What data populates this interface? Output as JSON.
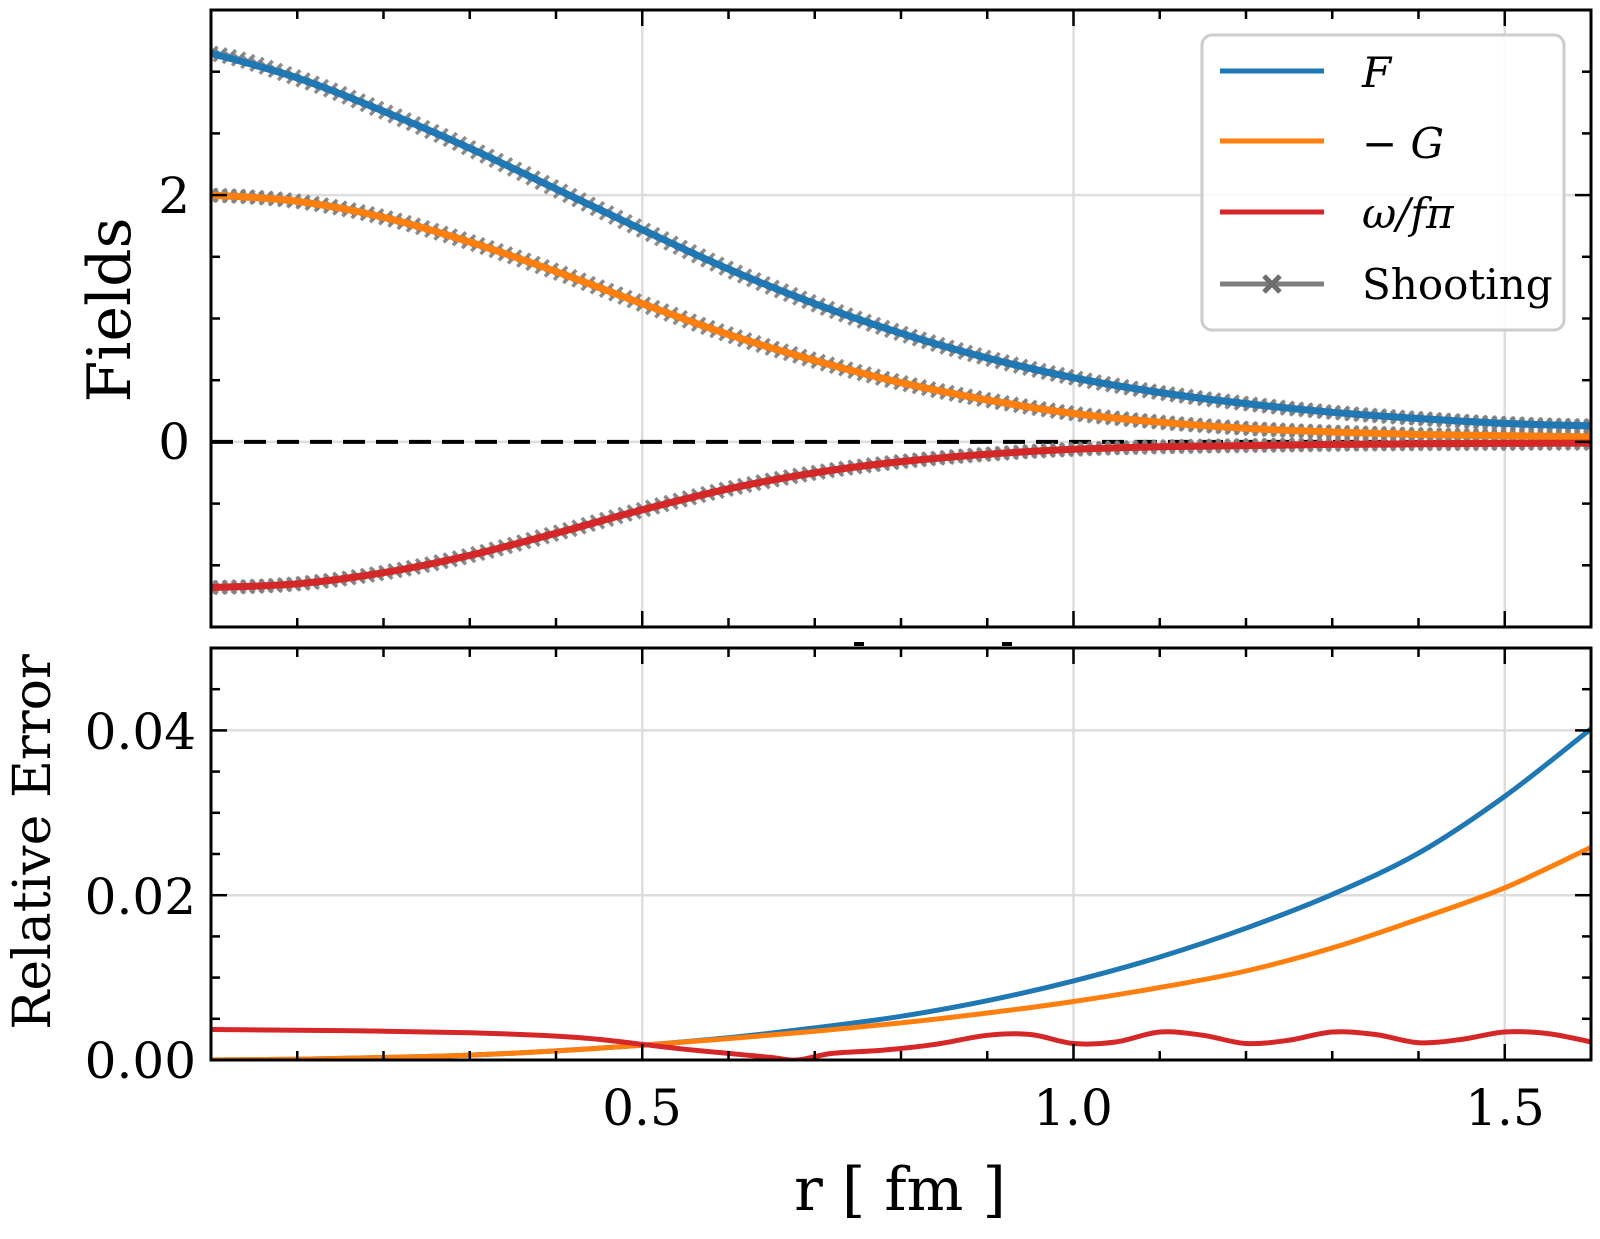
{
  "chart_data": [
    {
      "panel": "top",
      "type": "line",
      "title": "",
      "xlabel": "",
      "ylabel": "Fields",
      "xlim": [
        0,
        1.6
      ],
      "ylim": [
        -1.5,
        3.5
      ],
      "grid": true,
      "yticks": [
        0,
        2
      ],
      "yticks_minor_step": 0.5,
      "xticks": [
        0.5,
        1.0,
        1.5
      ],
      "xticks_minor_step": 0.1,
      "ytick_labels": [
        "0",
        "2"
      ],
      "reference_line": {
        "y": 0,
        "style": "dashed",
        "color": "#000000"
      },
      "legend": {
        "placement": "top-right",
        "entries": [
          {
            "label": "F",
            "color": "#1f77b4",
            "marker": "none"
          },
          {
            "label": "− G",
            "color": "#ff7f0e",
            "marker": "none"
          },
          {
            "label": "ω/fπ",
            "color": "#d62728",
            "marker": "none"
          },
          {
            "label": "Shooting",
            "color": "#7f7f7f",
            "marker": "x"
          }
        ]
      },
      "x": [
        0.0,
        0.1,
        0.2,
        0.3,
        0.4,
        0.5,
        0.6,
        0.7,
        0.8,
        0.9,
        1.0,
        1.1,
        1.2,
        1.3,
        1.4,
        1.5,
        1.6
      ],
      "series": [
        {
          "name": "F",
          "color": "#1f77b4",
          "values": [
            3.15,
            2.95,
            2.68,
            2.38,
            2.05,
            1.72,
            1.4,
            1.12,
            0.88,
            0.68,
            0.52,
            0.4,
            0.31,
            0.24,
            0.19,
            0.15,
            0.13
          ]
        },
        {
          "name": "-G",
          "color": "#ff7f0e",
          "values": [
            2.0,
            1.95,
            1.82,
            1.62,
            1.38,
            1.12,
            0.87,
            0.66,
            0.48,
            0.34,
            0.23,
            0.16,
            0.11,
            0.08,
            0.06,
            0.05,
            0.04
          ]
        },
        {
          "name": "omega/f_pi",
          "color": "#d62728",
          "values": [
            -1.18,
            -1.15,
            -1.06,
            -0.92,
            -0.74,
            -0.55,
            -0.38,
            -0.25,
            -0.16,
            -0.1,
            -0.06,
            -0.04,
            -0.03,
            -0.02,
            -0.015,
            -0.012,
            -0.01
          ]
        },
        {
          "name": "Shooting",
          "color": "#7f7f7f",
          "marker": "x",
          "note": "overlays F, -G and omega/f_pi curves"
        }
      ]
    },
    {
      "panel": "bottom",
      "type": "line",
      "title": "",
      "xlabel": "r [ fm ]",
      "ylabel": "Relative Error",
      "xlim": [
        0,
        1.6
      ],
      "ylim": [
        0,
        0.05
      ],
      "grid": true,
      "yticks": [
        0.0,
        0.02,
        0.04
      ],
      "yticks_minor_step": 0.005,
      "ytick_labels": [
        "0.00",
        "0.02",
        "0.04"
      ],
      "xticks": [
        0.5,
        1.0,
        1.5
      ],
      "xtick_labels": [
        "0.5",
        "1.0",
        "1.5"
      ],
      "xticks_minor_step": 0.1,
      "x": [
        0.0,
        0.1,
        0.2,
        0.3,
        0.4,
        0.5,
        0.6,
        0.7,
        0.8,
        0.9,
        1.0,
        1.1,
        1.2,
        1.3,
        1.4,
        1.5,
        1.6
      ],
      "series": [
        {
          "name": "F",
          "color": "#1f77b4",
          "values": [
            0.0,
            0.0001,
            0.0003,
            0.0006,
            0.0011,
            0.0018,
            0.0027,
            0.0039,
            0.0053,
            0.0072,
            0.0096,
            0.0125,
            0.016,
            0.0201,
            0.0251,
            0.032,
            0.0402
          ]
        },
        {
          "name": "-G",
          "color": "#ff7f0e",
          "values": [
            0.0,
            0.0001,
            0.0003,
            0.0006,
            0.0011,
            0.0018,
            0.0026,
            0.0035,
            0.0045,
            0.0057,
            0.0071,
            0.0088,
            0.0108,
            0.0136,
            0.0171,
            0.0209,
            0.0258
          ]
        },
        {
          "name": "omega/f_pi",
          "color": "#d62728",
          "x": [
            0.0,
            0.1,
            0.2,
            0.3,
            0.4,
            0.45,
            0.5,
            0.55,
            0.6,
            0.65,
            0.68,
            0.72,
            0.78,
            0.84,
            0.9,
            0.95,
            1.0,
            1.05,
            1.1,
            1.15,
            1.2,
            1.25,
            1.3,
            1.35,
            1.4,
            1.45,
            1.5,
            1.55,
            1.6
          ],
          "values": [
            0.0037,
            0.0036,
            0.0035,
            0.0033,
            0.0029,
            0.0025,
            0.0019,
            0.0013,
            0.0008,
            0.0003,
            0.0,
            0.0008,
            0.0012,
            0.0019,
            0.003,
            0.0031,
            0.002,
            0.0022,
            0.0034,
            0.003,
            0.002,
            0.0024,
            0.0034,
            0.0031,
            0.0021,
            0.0025,
            0.0034,
            0.0032,
            0.0022
          ]
        }
      ]
    }
  ]
}
